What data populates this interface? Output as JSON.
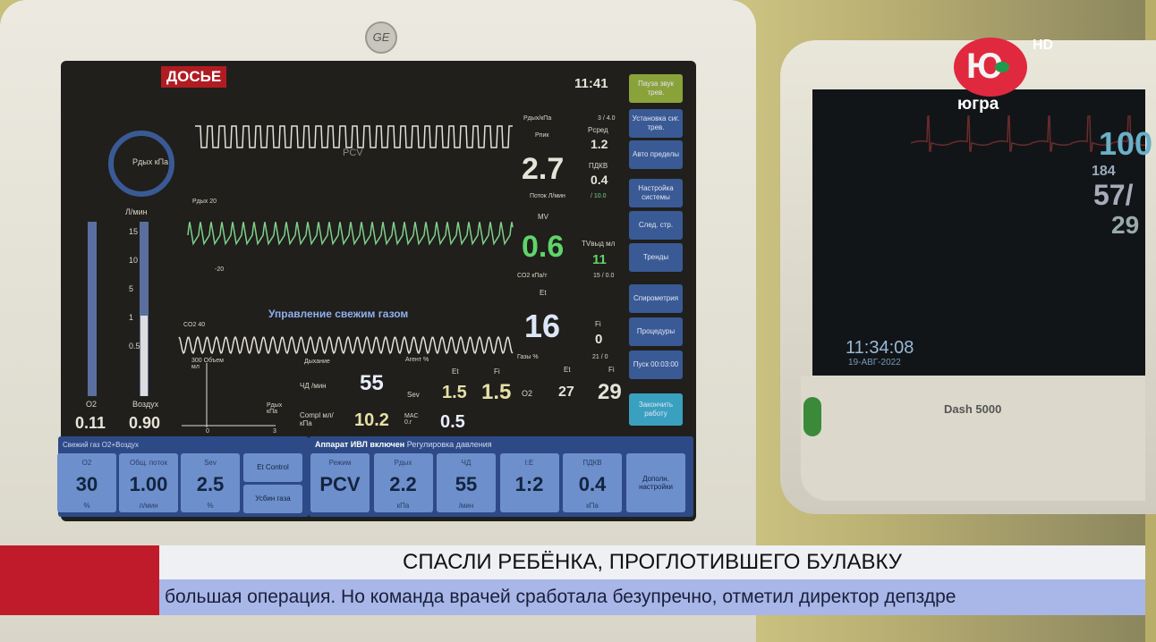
{
  "overlay": {
    "badge": "ДОСЬЕ",
    "title": "СПАСЛИ РЕБЁНКА, ПРОГЛОТИВШЕГО БУЛАВКУ",
    "ticker": "большая операция. Но команда врачей сработала безупречно, отметил директор депздре",
    "channel_logo": "Ю",
    "channel_name": "югра",
    "hd": "HD",
    "accent_color": "#c01b2a"
  },
  "monitor": {
    "brand": "GE",
    "time": "11:41",
    "waves": {
      "pcv_label": "PCV",
      "mid_label": "Pдых 20",
      "mid_min": "-20",
      "co2_label": "CO2 40",
      "fresh_gas": "Управление свежим газом"
    },
    "left_gauge": {
      "label": "Pдых кПа",
      "flow_label": "Л/мин",
      "ticks": [
        "15",
        "10",
        "5",
        "1",
        "0.5"
      ],
      "o2_label": "O2",
      "o2_value": "0.11",
      "air_label": "Воздух",
      "air_value": "0.90"
    },
    "loop": {
      "y_label": "300 Объем мл",
      "x_label": "Pдых кПа",
      "x0": "0",
      "x1": "3"
    },
    "breath": {
      "header": "Дыхание",
      "rr_label": "ЧД /мин",
      "rr": "55",
      "compl_label": "Compl мл/кПа",
      "compl": "10.2"
    },
    "agent": {
      "header": "Агент %",
      "et": "Et",
      "fi": "Fi",
      "agent": "Sev",
      "et_val": "1.5",
      "fi_val": "1.5",
      "mac_label": "MAC 0.г",
      "mac": "0.5"
    },
    "gases": {
      "header": "Газы %",
      "range": "21 / 0",
      "et": "Et",
      "fi": "Fi",
      "o2": "O2",
      "et_val": "27",
      "fi_val": "29"
    },
    "pressure": {
      "header": "Pдых/кПа",
      "range": "3 / 4.0",
      "pmax_label": "Pпик",
      "pmax": "2.7",
      "pmean_label": "Pсред",
      "pmean": "1.2",
      "peep_label": "ПДКВ",
      "peep": "0.4"
    },
    "flow": {
      "header": "Поток Л/мин",
      "range": "/ 10.0",
      "mv_label": "MV",
      "mv": "0.6",
      "tv_label": "TVвыд мл",
      "tv": "11"
    },
    "co2": {
      "header": "CO2 кПа/т",
      "range": "15 / 0.0",
      "et": "Et",
      "et_val": "16",
      "fi": "Fi",
      "fi_val": "0"
    },
    "side_buttons": [
      "Пауза звук трев.",
      "Установка сиг. трев.",
      "Авто пределы",
      "Настройка системы",
      "След. стр.",
      "Тренды",
      "Спирометрия",
      "Процедуры",
      "Пуск 00:03:00",
      "Закончить работу"
    ],
    "fresh_panel": {
      "header": "Свежий газ  O2+Воздух",
      "items": [
        {
          "label": "O2",
          "value": "30",
          "unit": "%"
        },
        {
          "label": "Общ. поток",
          "value": "1.00",
          "unit": "л/мин"
        },
        {
          "label": "Sev",
          "value": "2.5",
          "unit": "%"
        }
      ],
      "btn1": "Et Control",
      "btn2": "Усбин газа"
    },
    "vent_panel": {
      "header": "Аппарат ИВЛ включен",
      "subheader": "Регулировка давления",
      "items": [
        {
          "label": "Режим",
          "value": "PCV",
          "unit": ""
        },
        {
          "label": "Pдых",
          "value": "2.2",
          "unit": "кПа"
        },
        {
          "label": "ЧД",
          "value": "55",
          "unit": "/мин"
        },
        {
          "label": "I:E",
          "value": "1:2",
          "unit": ""
        },
        {
          "label": "ПДКВ",
          "value": "0.4",
          "unit": "кПа"
        }
      ],
      "more": "Дополн. настройки"
    }
  },
  "right_monitor": {
    "model": "Dash 5000",
    "time": "11:34:08",
    "date": "19-АВГ-2022",
    "v1": "100",
    "v2": "184",
    "v3": "57/",
    "v4": "29"
  }
}
